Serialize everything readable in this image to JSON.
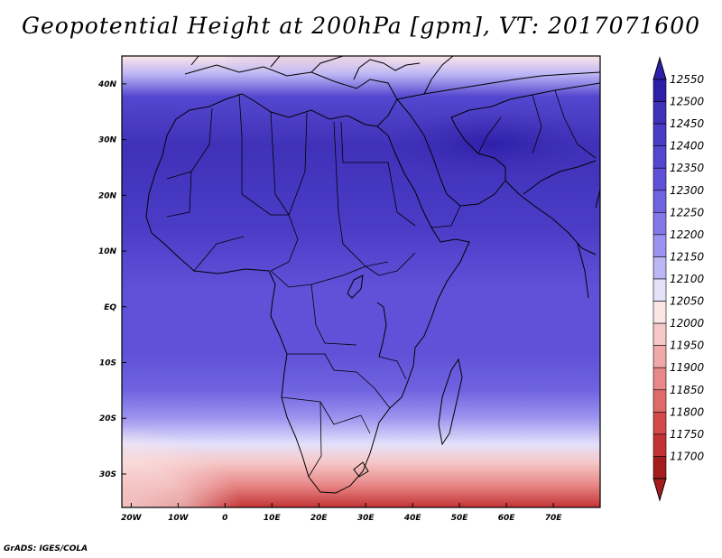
{
  "title": "Geopotential Height at 200hPa [gpm], VT: 2017071600",
  "credit": "GrADS: IGES/COLA",
  "map": {
    "lat_labels": [
      "40N",
      "30N",
      "20N",
      "10N",
      "EQ",
      "10S",
      "20S",
      "30S"
    ],
    "lat_values": [
      40,
      30,
      20,
      10,
      0,
      -10,
      -20,
      -30
    ],
    "lon_labels": [
      "20W",
      "10W",
      "0",
      "10E",
      "20E",
      "30E",
      "40E",
      "50E",
      "60E",
      "70E"
    ],
    "lon_values": [
      -20,
      -10,
      0,
      10,
      20,
      30,
      40,
      50,
      60,
      70
    ],
    "lon_range": [
      -22,
      80
    ],
    "lat_range": [
      -36,
      45
    ]
  },
  "colorbar": {
    "levels": [
      "12550",
      "12500",
      "12450",
      "12400",
      "12350",
      "12300",
      "12250",
      "12200",
      "12150",
      "12100",
      "12050",
      "12000",
      "11950",
      "11900",
      "11850",
      "11800",
      "11750",
      "11700"
    ],
    "colors": [
      "#2d1fa8",
      "#3f32b8",
      "#4a3cc6",
      "#5447cf",
      "#6052d8",
      "#6f63e0",
      "#8478e8",
      "#9c92ef",
      "#bdb6f5",
      "#e4e1fb",
      "#fbe6e6",
      "#f6c8c8",
      "#f0a8a8",
      "#e88888",
      "#df6a6a",
      "#d44a4a",
      "#c43333",
      "#a51c1c"
    ]
  }
}
